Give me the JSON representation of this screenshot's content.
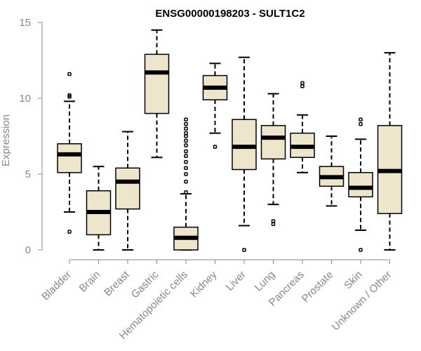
{
  "chart_data": {
    "type": "boxplot",
    "title": "ENSG00000198203 - SULT1C2",
    "ylabel": "Expression",
    "xlabel": "",
    "ylim": [
      0,
      15
    ],
    "yticks": [
      0,
      5,
      10,
      15
    ],
    "categories": [
      "Bladder",
      "Brain",
      "Breast",
      "Gastric",
      "Hematopoietic cells",
      "Kidney",
      "Liver",
      "Lung",
      "Pancreas",
      "Prostate",
      "Skin",
      "Unknown / Other"
    ],
    "boxes": [
      {
        "category": "Bladder",
        "min": 2.5,
        "q1": 5.1,
        "median": 6.3,
        "q3": 7.0,
        "max": 9.8,
        "outliers": [
          1.2,
          10.1,
          10.2,
          11.6
        ]
      },
      {
        "category": "Brain",
        "min": 0.0,
        "q1": 1.0,
        "median": 2.5,
        "q3": 3.9,
        "max": 5.5,
        "outliers": []
      },
      {
        "category": "Breast",
        "min": 0.0,
        "q1": 2.7,
        "median": 4.5,
        "q3": 5.4,
        "max": 7.8,
        "outliers": []
      },
      {
        "category": "Gastric",
        "min": 6.1,
        "q1": 9.0,
        "median": 11.7,
        "q3": 12.9,
        "max": 14.5,
        "outliers": []
      },
      {
        "category": "Hematopoietic cells",
        "min": 0.0,
        "q1": 0.0,
        "median": 0.8,
        "q3": 1.5,
        "max": 3.7,
        "outliers": [
          3.8,
          4.5,
          5.0,
          5.4,
          5.8,
          6.2,
          6.5,
          6.9,
          7.2,
          7.5,
          7.7,
          8.0,
          8.3,
          8.6
        ]
      },
      {
        "category": "Kidney",
        "min": 7.7,
        "q1": 9.9,
        "median": 10.7,
        "q3": 11.5,
        "max": 12.3,
        "outliers": [
          6.8
        ]
      },
      {
        "category": "Liver",
        "min": 1.6,
        "q1": 5.3,
        "median": 6.8,
        "q3": 8.6,
        "max": 12.7,
        "outliers": [
          0.0
        ]
      },
      {
        "category": "Lung",
        "min": 3.0,
        "q1": 6.0,
        "median": 7.4,
        "q3": 8.2,
        "max": 10.3,
        "outliers": [
          1.7,
          1.9
        ]
      },
      {
        "category": "Pancreas",
        "min": 5.1,
        "q1": 6.1,
        "median": 6.8,
        "q3": 7.7,
        "max": 8.9,
        "outliers": [
          10.8,
          11.0
        ]
      },
      {
        "category": "Prostate",
        "min": 2.9,
        "q1": 4.2,
        "median": 4.8,
        "q3": 5.5,
        "max": 7.5,
        "outliers": []
      },
      {
        "category": "Skin",
        "min": 1.3,
        "q1": 3.5,
        "median": 4.1,
        "q3": 5.1,
        "max": 7.3,
        "outliers": [
          0.0,
          8.3,
          8.6
        ]
      },
      {
        "category": "Unknown / Other",
        "min": 0.0,
        "q1": 2.4,
        "median": 5.2,
        "q3": 8.2,
        "max": 13.0,
        "outliers": []
      }
    ]
  }
}
